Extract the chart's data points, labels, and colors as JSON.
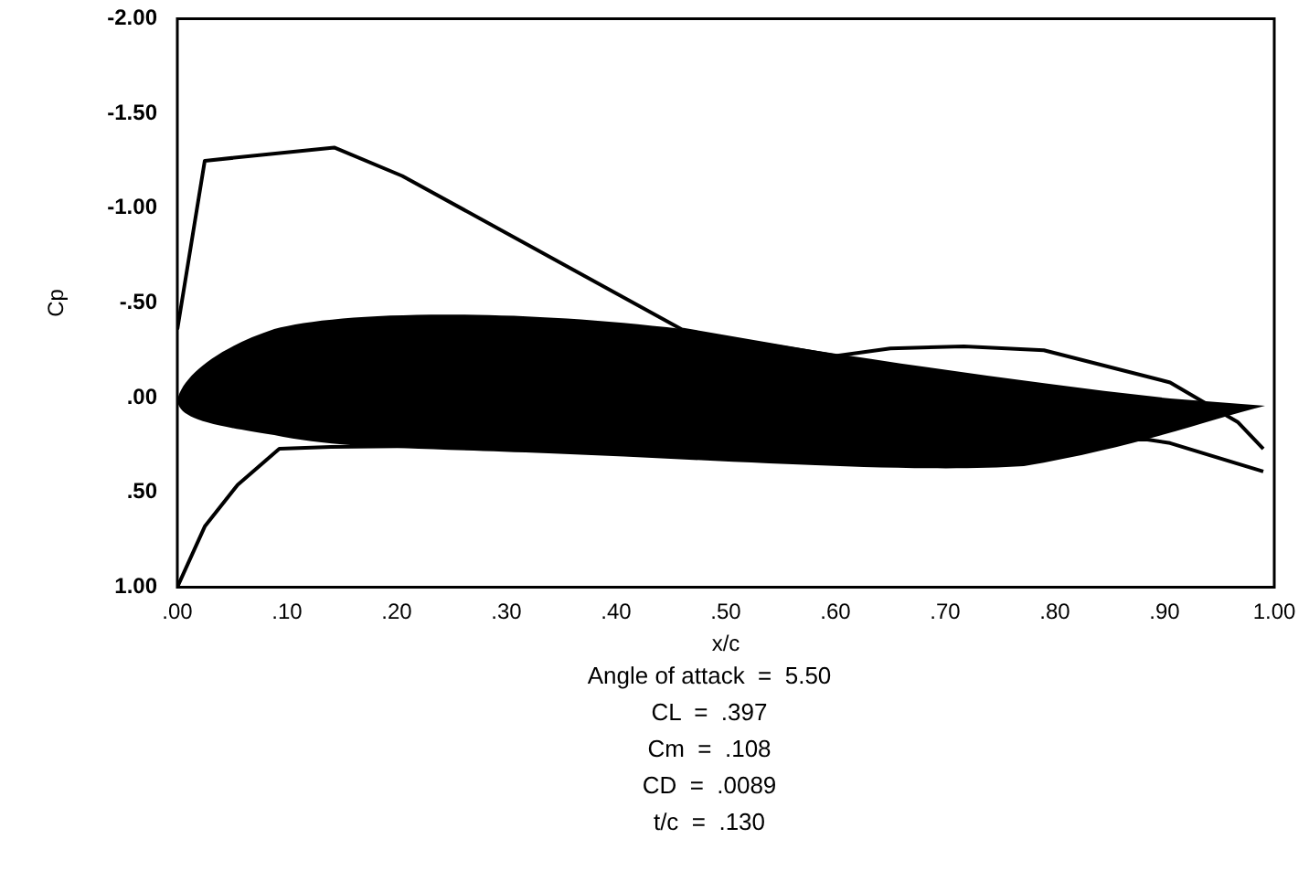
{
  "chart_data": {
    "type": "line",
    "xlabel": "x/c",
    "ylabel": "Cp",
    "xlim": [
      0,
      1
    ],
    "xticks": [
      {
        "value": 0,
        "label": ".00"
      },
      {
        "value": 0.1,
        "label": ".10"
      },
      {
        "value": 0.2,
        "label": ".20"
      },
      {
        "value": 0.3,
        "label": ".30"
      },
      {
        "value": 0.4,
        "label": ".40"
      },
      {
        "value": 0.5,
        "label": ".50"
      },
      {
        "value": 0.6,
        "label": ".60"
      },
      {
        "value": 0.7,
        "label": ".70"
      },
      {
        "value": 0.8,
        "label": ".80"
      },
      {
        "value": 0.9,
        "label": ".90"
      },
      {
        "value": 1,
        "label": "1.00"
      }
    ],
    "ylim": [
      1,
      -2
    ],
    "yticks": [
      {
        "value": -2,
        "label": "-2.00"
      },
      {
        "value": -1.5,
        "label": "-1.50"
      },
      {
        "value": -1,
        "label": "-1.00"
      },
      {
        "value": -0.5,
        "label": "-.50"
      },
      {
        "value": 0,
        "label": ".00"
      },
      {
        "value": 0.5,
        "label": ".50"
      },
      {
        "value": 1,
        "label": "1.00"
      }
    ],
    "grid": false,
    "legend": false,
    "marker": "none",
    "line_style": "solid",
    "series": [
      {
        "color": "#000000",
        "x": [
          0,
          0.025,
          0.143,
          0.205,
          0.46,
          0.6,
          0.65,
          0.717,
          0.79,
          0.905,
          0.967,
          0.99
        ],
        "values": [
          -0.36,
          -1.25,
          -1.32,
          -1.17,
          -0.36,
          -0.22,
          -0.26,
          -0.27,
          -0.25,
          -0.08,
          0.13,
          0.27
        ]
      },
      {
        "color": "#000000",
        "x": [
          0,
          0.025,
          0.055,
          0.093,
          0.14,
          0.883,
          0.905,
          0.99
        ],
        "values": [
          1,
          0.68,
          0.46,
          0.27,
          0.26,
          0.22,
          0.24,
          0.39
        ]
      }
    ],
    "annotations": [
      "Angle of attack  =  5.50",
      "CL  =  .397",
      "Cm  =  .108",
      "CD  =  .0089",
      "t/c  =  .130"
    ]
  }
}
